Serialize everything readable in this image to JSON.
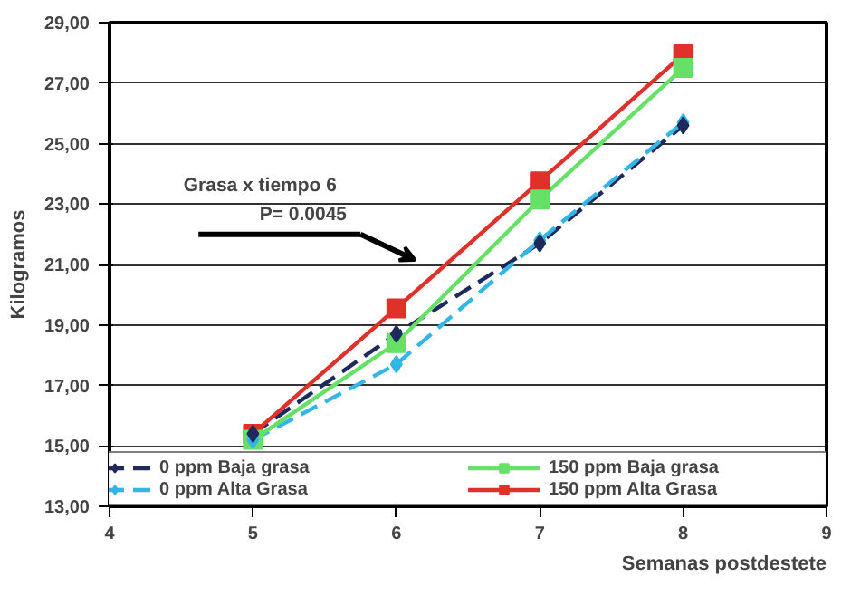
{
  "chart_data": {
    "type": "line",
    "xlabel": "Semanas postdestete",
    "ylabel": "Kilogramos",
    "x": [
      5,
      6,
      7,
      8
    ],
    "series": [
      {
        "name": "0 ppm Baja grasa",
        "color": "#1f2a5c",
        "values": [
          15.4,
          18.7,
          21.7,
          25.6
        ],
        "marker": "diamond",
        "line_style": "dashed"
      },
      {
        "name": "0 ppm Alta Grasa",
        "color": "#33b5e5",
        "values": [
          15.2,
          17.7,
          21.8,
          25.7
        ],
        "marker": "diamond",
        "line_style": "dashed"
      },
      {
        "name": "150 ppm Baja grasa",
        "color": "#66e066",
        "values": [
          15.2,
          18.4,
          23.15,
          27.5
        ],
        "marker": "square",
        "line_style": "solid"
      },
      {
        "name": "150 ppm Alta Grasa",
        "color": "#e0302a",
        "values": [
          15.4,
          19.55,
          23.75,
          27.95
        ],
        "marker": "square",
        "line_style": "solid"
      }
    ],
    "xlim": [
      4,
      9
    ],
    "xticks": [
      4,
      5,
      6,
      7,
      8,
      9
    ],
    "ylim": [
      13,
      29
    ],
    "yticks": [
      {
        "value": 13,
        "label": "13,00"
      },
      {
        "value": 15,
        "label": "15,00"
      },
      {
        "value": 17,
        "label": "17,00"
      },
      {
        "value": 19,
        "label": "19,00"
      },
      {
        "value": 21,
        "label": "21,00"
      },
      {
        "value": 23,
        "label": "23,00"
      },
      {
        "value": 25,
        "label": "25,00"
      },
      {
        "value": 27,
        "label": "27,00"
      },
      {
        "value": 29,
        "label": "29,00"
      }
    ],
    "grid": "y",
    "legend": "bottom",
    "annotations": [
      "Grasa x tiempo 6",
      "P= 0.0045"
    ]
  }
}
